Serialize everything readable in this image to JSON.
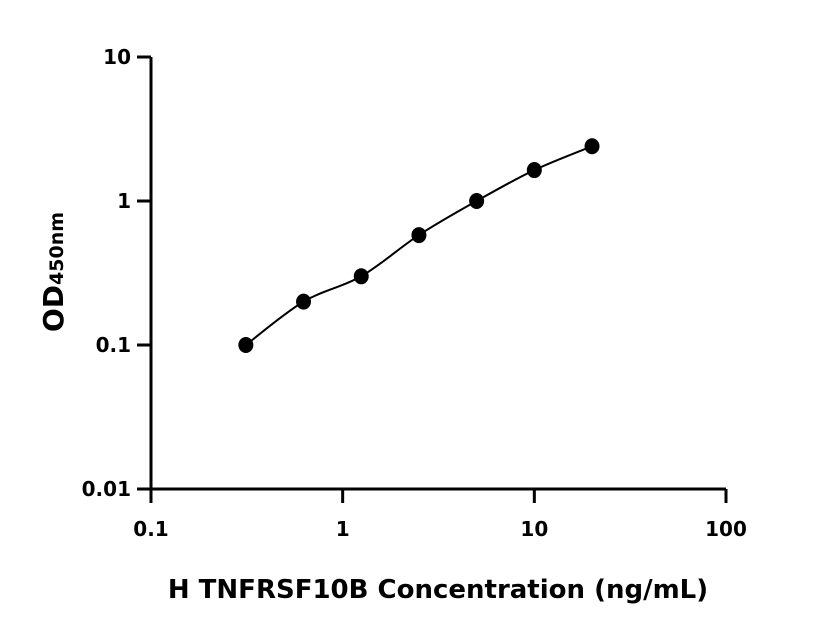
{
  "chart_data": {
    "type": "scatter",
    "title": "",
    "xlabel": "H TNFRSF10B Concentration (ng/mL)",
    "ylabel": "OD",
    "ylabel_subscript": "450nm",
    "x_scale": "log",
    "y_scale": "log",
    "xlim": [
      0.1,
      100
    ],
    "ylim": [
      0.01,
      10
    ],
    "x_ticks": [
      "0.1",
      "1",
      "10",
      "100"
    ],
    "y_ticks": [
      "0.01",
      "0.1",
      "1",
      "10"
    ],
    "grid": false,
    "legend": "none",
    "fit_curve": true,
    "color": "#000000",
    "series": [
      {
        "x": [
          0.3125,
          0.625,
          1.25,
          2.5,
          5,
          10,
          20
        ],
        "y": [
          0.1,
          0.2,
          0.3,
          0.58,
          1.0,
          1.64,
          2.4
        ]
      }
    ]
  }
}
